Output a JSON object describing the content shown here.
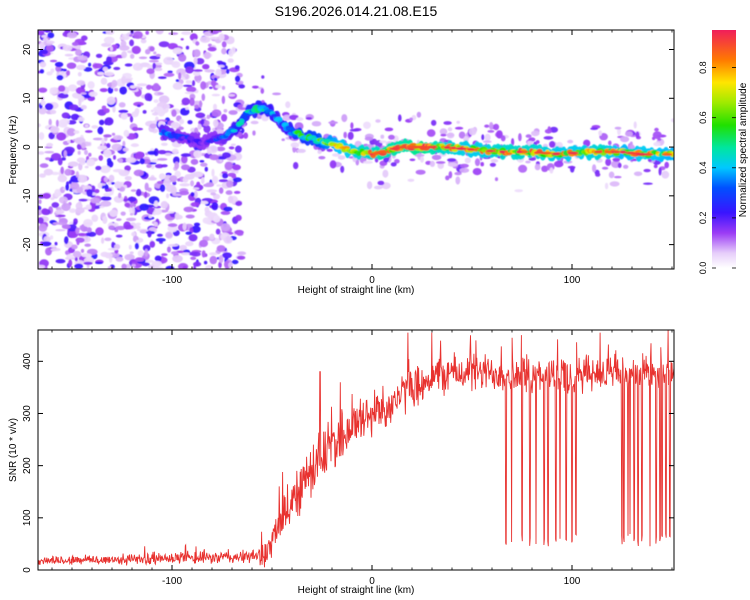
{
  "title": "S196.2026.014.21.08.E15",
  "colors": {
    "signal": "#e8322f",
    "axis": "#000000",
    "background": "#ffffff"
  },
  "chart_data": [
    {
      "type": "heatmap",
      "name": "spectrogram",
      "xlabel": "Height of straight line (km)",
      "ylabel": "Frequency (Hz)",
      "xlim": [
        -167,
        151
      ],
      "ylim": [
        -25,
        24
      ],
      "xticks": [
        -100,
        0,
        100
      ],
      "xtick_labels": [
        "-100",
        "0",
        "100"
      ],
      "yticks": [
        -20,
        -10,
        0,
        10,
        20
      ],
      "ytick_labels": [
        "-20",
        "-10",
        "0",
        "10",
        "20"
      ],
      "colorbar": {
        "label": "Normalized spectral amplitude",
        "range": [
          0,
          0.95
        ],
        "ticks": [
          0.0,
          0.2,
          0.4,
          0.6,
          0.8
        ],
        "tick_labels": [
          "0.0",
          "0.2",
          "0.4",
          "0.6",
          "0.8"
        ],
        "stops": [
          {
            "v": 0.0,
            "c": "#ffffff"
          },
          {
            "v": 0.06,
            "c": "#e6cdfa"
          },
          {
            "v": 0.14,
            "c": "#9b3cf5"
          },
          {
            "v": 0.22,
            "c": "#3a14ff"
          },
          {
            "v": 0.32,
            "c": "#0050ff"
          },
          {
            "v": 0.4,
            "c": "#00c8ff"
          },
          {
            "v": 0.48,
            "c": "#00e6a0"
          },
          {
            "v": 0.57,
            "c": "#20e000"
          },
          {
            "v": 0.66,
            "c": "#a0ea00"
          },
          {
            "v": 0.74,
            "c": "#ffe600"
          },
          {
            "v": 0.83,
            "c": "#ff7a00"
          },
          {
            "v": 0.95,
            "c": "#f01e5a"
          }
        ]
      },
      "ridge": {
        "x": [
          -105,
          -95,
          -85,
          -75,
          -68,
          -62,
          -56,
          -50,
          -45,
          -40,
          -36,
          -33,
          -28,
          -22,
          -18,
          -15,
          -10,
          -5,
          0,
          5,
          15,
          25,
          35,
          50,
          65,
          80,
          95,
          105,
          115,
          125,
          135,
          151
        ],
        "freq": [
          3,
          2,
          1,
          2,
          4,
          7,
          8,
          7,
          5,
          3,
          2.5,
          2,
          1.5,
          1,
          0.5,
          0,
          -1,
          -1,
          -1.5,
          -1,
          0,
          0,
          0,
          -0.5,
          -1,
          -1,
          -1.5,
          -1,
          -1,
          -1,
          -1.5,
          -1.5
        ],
        "amp": [
          0.35,
          0.25,
          0.2,
          0.3,
          0.4,
          0.45,
          0.45,
          0.4,
          0.35,
          0.45,
          0.55,
          0.5,
          0.55,
          0.65,
          0.7,
          0.75,
          0.75,
          0.8,
          0.8,
          0.85,
          0.85,
          0.9,
          0.8,
          0.75,
          0.8,
          0.8,
          0.75,
          0.75,
          0.8,
          0.7,
          0.75,
          0.7
        ]
      },
      "scatter_region_km": [
        -167,
        -65
      ],
      "sparse_region_km": [
        -65,
        151
      ]
    },
    {
      "type": "line",
      "name": "snr",
      "xlabel": "Height of straight line (km)",
      "ylabel": "SNR (10 * v/v)",
      "xlim": [
        -167,
        151
      ],
      "ylim": [
        0,
        460
      ],
      "xticks": [
        -100,
        0,
        100
      ],
      "xtick_labels": [
        "-100",
        "0",
        "100"
      ],
      "yticks": [
        0,
        100,
        200,
        300,
        400
      ],
      "ytick_labels": [
        "0",
        "100",
        "200",
        "300",
        "400"
      ],
      "trend": {
        "x": [
          -167,
          -120,
          -60,
          -52,
          -45,
          -38,
          -30,
          -20,
          -10,
          0,
          10,
          20,
          30,
          40,
          151
        ],
        "y": [
          18,
          20,
          25,
          35,
          95,
          150,
          190,
          240,
          275,
          300,
          320,
          350,
          370,
          378,
          375
        ]
      },
      "noise": {
        "x": [
          -167,
          -60,
          -50,
          -40,
          -20,
          20,
          151
        ],
        "amp": [
          10,
          15,
          40,
          60,
          65,
          45,
          40
        ]
      },
      "spikes": [
        {
          "x": -26,
          "y": 380
        },
        {
          "x": 18,
          "y": 455
        },
        {
          "x": 30,
          "y": 455
        },
        {
          "x": 52,
          "y": 440
        },
        {
          "x": 70,
          "y": 445
        },
        {
          "x": 114,
          "y": 455
        },
        {
          "x": 148,
          "y": 460
        }
      ],
      "dropouts_x": [
        67,
        70,
        75,
        79,
        82,
        86,
        88,
        92,
        94,
        97,
        100,
        102,
        125,
        126,
        128,
        129,
        131,
        133,
        135,
        139,
        142,
        144,
        145,
        147,
        149
      ]
    }
  ]
}
